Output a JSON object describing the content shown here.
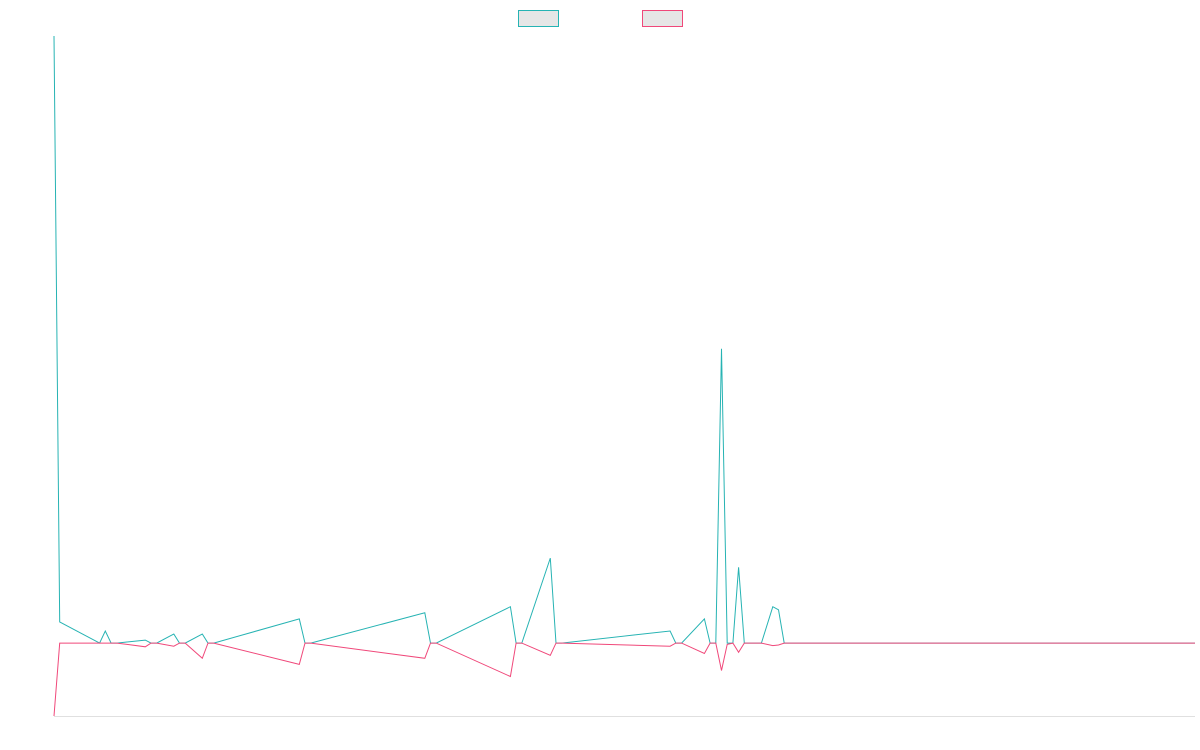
{
  "chart_data": {
    "type": "line",
    "title": "",
    "xlabel": "",
    "ylabel": "",
    "x": [
      0,
      1,
      8,
      9,
      10,
      11,
      16,
      17,
      18,
      21,
      22,
      23,
      26,
      27,
      28,
      43,
      44,
      45,
      65,
      66,
      67,
      80,
      81,
      82,
      87,
      88,
      89,
      108,
      109,
      110,
      114,
      115,
      116,
      117,
      118,
      119,
      120,
      121,
      122,
      123,
      124,
      126,
      127,
      128,
      200
    ],
    "ylim": [
      -12,
      100
    ],
    "x_range": [
      0,
      200
    ],
    "series": [
      {
        "color": "#26b3b3",
        "values": [
          100,
          3.5,
          0,
          2,
          0,
          0,
          0.5,
          0,
          0,
          1.5,
          0,
          0,
          1.5,
          0,
          0,
          4,
          0,
          0,
          5,
          0,
          0,
          6,
          0,
          0,
          14,
          0,
          0,
          2,
          0,
          0,
          4,
          0,
          0,
          48.5,
          0,
          0,
          12.5,
          0,
          0,
          0,
          0,
          6,
          5.5,
          0,
          0
        ]
      },
      {
        "color": "#f0487a",
        "values": [
          -12,
          0,
          0,
          0,
          0,
          0,
          -0.6,
          0,
          0,
          -0.5,
          0,
          0,
          -2.5,
          0,
          0,
          -3.5,
          0,
          0,
          -2.5,
          0,
          0,
          -5.5,
          0,
          0,
          -2,
          0,
          0,
          -0.5,
          0,
          0,
          -1.7,
          0,
          0,
          -4.5,
          -0.2,
          0,
          -1.5,
          0,
          0,
          0,
          0,
          -0.4,
          -0.3,
          0,
          0
        ]
      }
    ],
    "legend": {
      "position": "top-center",
      "entries": [
        {
          "color": "#26b3b3",
          "fill": "#e6e6e6"
        },
        {
          "color": "#f0487a",
          "fill": "#e6e6e6"
        }
      ]
    },
    "grid": false
  }
}
